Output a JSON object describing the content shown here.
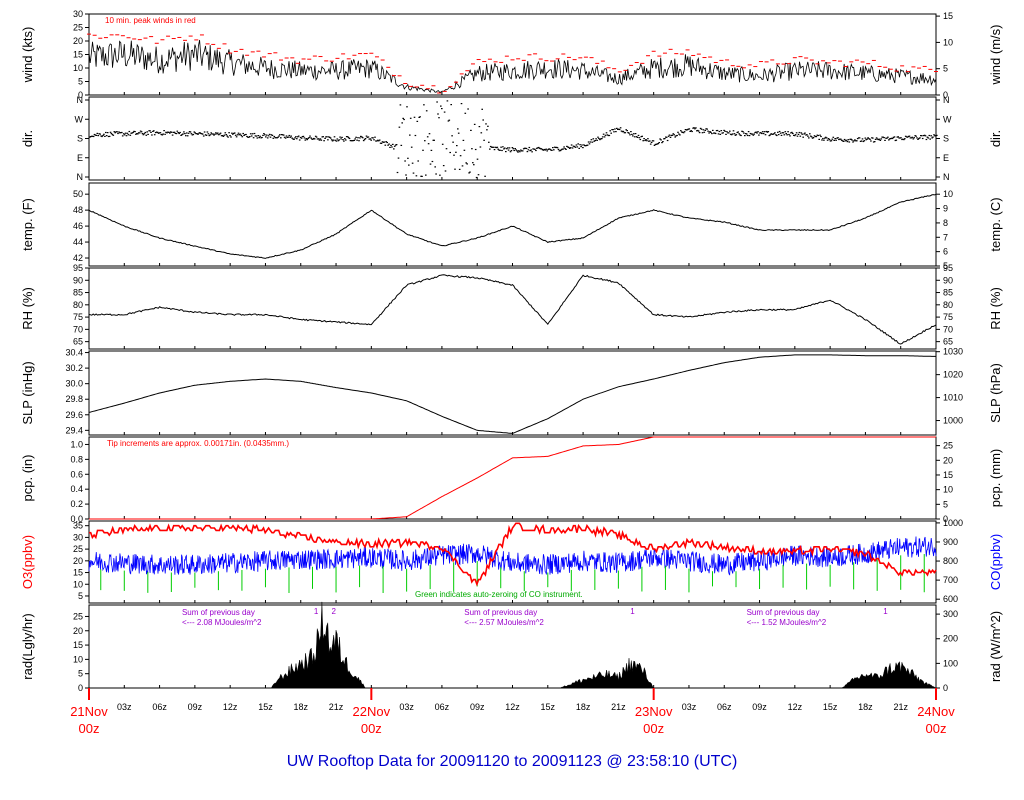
{
  "title": "UW Rooftop Data for 20091120  to  20091123 @ 23:58:10  (UTC)",
  "colors": {
    "frame": "#000000",
    "peak": "#ff0000",
    "ozone": "#ff0000",
    "co": "#0000ff",
    "co_zero": "#00cc00",
    "note_purple": "#9900cc",
    "title": "#0000cc",
    "date_label": "#ff0000"
  },
  "x_axis": {
    "range_hours": [
      0,
      72
    ],
    "tick_hours": [
      3,
      6,
      9,
      12,
      15,
      18,
      21,
      27,
      30,
      33,
      36,
      39,
      42,
      45,
      51,
      54,
      57,
      60,
      63,
      66,
      69
    ],
    "tick_labels": [
      "03z",
      "06z",
      "09z",
      "12z",
      "15z",
      "18z",
      "21z",
      "03z",
      "06z",
      "09z",
      "12z",
      "15z",
      "18z",
      "21z",
      "03z",
      "06z",
      "09z",
      "12z",
      "15z",
      "18z",
      "21z"
    ],
    "date_marks": [
      {
        "hour": 0,
        "line1": "21Nov",
        "line2": "00z"
      },
      {
        "hour": 24,
        "line1": "22Nov",
        "line2": "00z"
      },
      {
        "hour": 48,
        "line1": "23Nov",
        "line2": "00z"
      },
      {
        "hour": 72,
        "line1": "24Nov",
        "line2": "00z"
      }
    ]
  },
  "chart_data": [
    {
      "type": "line",
      "ylabel": "wind (kts)",
      "ylabel2": "wind (m/s)",
      "annotation": "10 min. peak winds in red",
      "ylim": [
        0,
        30
      ],
      "yticks": [
        0,
        5,
        10,
        15,
        20,
        25,
        30
      ],
      "ylim2": [
        0,
        15.4
      ],
      "yticks2": [
        0,
        5,
        10,
        15
      ],
      "series": [
        {
          "values_x_hours": [
            0,
            3,
            6,
            9,
            12,
            15,
            18,
            21,
            24,
            27,
            30,
            33,
            36,
            39,
            42,
            45,
            48,
            51,
            54,
            57,
            60,
            63,
            66,
            69,
            72
          ],
          "values": [
            14,
            15,
            13,
            15,
            12,
            10,
            9,
            9,
            10,
            3,
            1,
            8,
            9,
            10,
            9,
            6,
            10,
            11,
            8,
            7,
            9,
            9,
            8,
            7,
            6
          ]
        },
        {
          "values_x_hours": [
            0,
            3,
            6,
            9,
            12,
            15,
            18,
            21,
            24,
            27,
            30,
            33,
            36,
            39,
            42,
            45,
            48,
            51,
            54,
            57,
            60,
            63,
            66,
            69,
            72
          ],
          "values": [
            22,
            22,
            20,
            22,
            17,
            15,
            13,
            14,
            15,
            5,
            2,
            12,
            14,
            14,
            14,
            9,
            15,
            16,
            12,
            11,
            13,
            12,
            12,
            10,
            9
          ]
        }
      ]
    },
    {
      "type": "scatter",
      "ylabel": "dir.",
      "ylabel2": "dir.",
      "ytick_labels": [
        "N",
        "E",
        "S",
        "W",
        "N"
      ],
      "series": [
        {
          "values_x_hours": [
            0,
            3,
            6,
            9,
            12,
            15,
            18,
            21,
            24,
            27,
            30,
            33,
            36,
            39,
            42,
            45,
            48,
            51,
            54,
            57,
            60,
            63,
            66,
            69,
            72
          ],
          "values": [
            200,
            205,
            210,
            205,
            200,
            195,
            185,
            180,
            185,
            120,
            60,
            140,
            130,
            130,
            150,
            230,
            160,
            225,
            210,
            205,
            205,
            180,
            175,
            185,
            190
          ]
        }
      ]
    },
    {
      "type": "line",
      "ylabel": "temp. (F)",
      "ylabel2": "temp. (C)",
      "ylim": [
        41,
        51.4
      ],
      "yticks": [
        42,
        44,
        46,
        48,
        50
      ],
      "yticks2": [
        5,
        6,
        7,
        8,
        9,
        10
      ],
      "series": [
        {
          "values_x_hours": [
            0,
            3,
            6,
            9,
            12,
            15,
            18,
            21,
            24,
            27,
            30,
            33,
            36,
            39,
            42,
            45,
            48,
            51,
            54,
            57,
            60,
            63,
            66,
            69,
            72
          ],
          "values": [
            48,
            46,
            44.5,
            43.5,
            42.5,
            42,
            43,
            45,
            48,
            45,
            43.5,
            44.5,
            46,
            44,
            44.5,
            47,
            48,
            47,
            46.5,
            45.5,
            45.5,
            45.5,
            47,
            49,
            50
          ]
        }
      ]
    },
    {
      "type": "line",
      "ylabel": "RH (%)",
      "ylabel2": "RH (%)",
      "ylim": [
        62,
        95
      ],
      "yticks": [
        65,
        70,
        75,
        80,
        85,
        90,
        95
      ],
      "yticks2": [
        65,
        70,
        75,
        80,
        85,
        90,
        95
      ],
      "series": [
        {
          "values_x_hours": [
            0,
            3,
            6,
            9,
            12,
            15,
            18,
            21,
            24,
            27,
            30,
            33,
            36,
            39,
            42,
            45,
            48,
            51,
            54,
            57,
            60,
            63,
            66,
            69,
            72
          ],
          "values": [
            76,
            76,
            79,
            77,
            76,
            76,
            74,
            73,
            72,
            88,
            92,
            91,
            88,
            72,
            92,
            89,
            76,
            75,
            77,
            78,
            78,
            82,
            74,
            64,
            72
          ]
        }
      ]
    },
    {
      "type": "line",
      "ylabel": "SLP (inHg)",
      "ylabel2": "SLP (hPa)",
      "ylim": [
        29.34,
        30.42
      ],
      "yticks": [
        29.4,
        29.6,
        29.8,
        30.0,
        30.2,
        30.4
      ],
      "yticks2": [
        1000,
        1010,
        1020,
        1030
      ],
      "series": [
        {
          "values_x_hours": [
            0,
            3,
            6,
            9,
            12,
            15,
            18,
            21,
            24,
            27,
            30,
            33,
            36,
            39,
            42,
            45,
            48,
            51,
            54,
            57,
            60,
            63,
            66,
            69,
            72
          ],
          "values": [
            29.63,
            29.75,
            29.88,
            29.98,
            30.03,
            30.06,
            30.03,
            29.95,
            29.88,
            29.78,
            29.58,
            29.4,
            29.36,
            29.55,
            29.8,
            29.96,
            30.06,
            30.17,
            30.27,
            30.34,
            30.37,
            30.37,
            30.36,
            30.36,
            30.35
          ]
        }
      ]
    },
    {
      "type": "line",
      "ylabel": "pcp. (in)",
      "ylabel2": "pcp. (mm)",
      "annotation": "Tip increments are approx. 0.00171in. (0.0435mm.)",
      "ylim": [
        0,
        1.1
      ],
      "yticks": [
        0.0,
        0.2,
        0.4,
        0.6,
        0.8,
        1.0
      ],
      "yticks2": [
        0,
        5,
        10,
        15,
        20,
        25
      ],
      "series": [
        {
          "values_x_hours": [
            0,
            3,
            6,
            9,
            12,
            15,
            18,
            21,
            24,
            27,
            30,
            33,
            36,
            39,
            42,
            45,
            48,
            51,
            54,
            57,
            60,
            63,
            66,
            69,
            72
          ],
          "values": [
            0,
            0,
            0,
            0,
            0,
            0,
            0,
            0,
            0,
            0.03,
            0.3,
            0.55,
            0.82,
            0.84,
            0.98,
            1.0,
            1.1,
            1.1,
            1.1,
            1.1,
            1.1,
            1.1,
            1.1,
            1.1,
            1.1
          ]
        }
      ]
    },
    {
      "type": "line",
      "ylabel": "O3(ppbv)",
      "ylabel2": "CO(ppbv)",
      "annotation": "Green indicates auto-zeroing of CO instrument.",
      "ylim": [
        2,
        37
      ],
      "yticks": [
        5,
        10,
        15,
        20,
        25,
        30,
        35
      ],
      "ylim2": [
        580,
        1010
      ],
      "yticks2": [
        600,
        700,
        800,
        900,
        1000
      ],
      "series": [
        {
          "name": "",
          "values_x_hours": [
            0,
            3,
            6,
            9,
            12,
            15,
            18,
            21,
            24,
            27,
            30,
            33,
            36,
            39,
            42,
            45,
            48,
            51,
            54,
            57,
            60,
            63,
            66,
            69,
            72
          ],
          "values": [
            31,
            33,
            34,
            34,
            34,
            33,
            30,
            28,
            27,
            28,
            26,
            10,
            35,
            33,
            34,
            31,
            25,
            28,
            26,
            24,
            24,
            25,
            23,
            15,
            15
          ]
        },
        {
          "name": "",
          "values_x_hours": [
            0,
            3,
            6,
            9,
            12,
            15,
            18,
            21,
            24,
            27,
            30,
            33,
            36,
            39,
            42,
            45,
            48,
            51,
            54,
            57,
            60,
            63,
            66,
            69,
            72
          ],
          "values": [
            800,
            790,
            780,
            780,
            790,
            800,
            810,
            810,
            820,
            800,
            830,
            840,
            790,
            780,
            800,
            790,
            820,
            800,
            780,
            800,
            830,
            820,
            840,
            870,
            880
          ]
        }
      ]
    },
    {
      "type": "area",
      "ylabel": "rad(Lgly/hr)",
      "ylabel2": "rad (W/m^2)",
      "ylim": [
        0,
        29
      ],
      "yticks": [
        0,
        5,
        10,
        15,
        20,
        25
      ],
      "ylim2": [
        0,
        337
      ],
      "yticks2": [
        0,
        100,
        200,
        300
      ],
      "notes": [
        {
          "hour": 4.5,
          "line1": "Sum of previous day",
          "line2": "<--- 2.08 MJoules/m^2"
        },
        {
          "hour": 28.5,
          "line1": "Sum of previous day",
          "line2": "<--- 2.57 MJoules/m^2"
        },
        {
          "hour": 52.5,
          "line1": "Sum of previous day",
          "line2": "<--- 1.52 MJoules/m^2"
        }
      ],
      "markers": [
        {
          "hour": 19.3,
          "label": "1"
        },
        {
          "hour": 20.8,
          "label": "2"
        },
        {
          "hour": 46.2,
          "label": "1"
        },
        {
          "hour": 67.7,
          "label": "1"
        }
      ],
      "series": [
        {
          "values_x_hours": [
            15.5,
            16,
            17,
            18,
            19,
            19.5,
            20,
            20.5,
            21,
            21.5,
            22,
            23,
            23.5,
            40,
            41,
            42,
            43,
            44,
            45,
            46,
            47,
            48,
            64,
            65,
            66,
            67,
            68,
            69,
            70,
            71,
            72
          ],
          "values": [
            0,
            3,
            6,
            9,
            11,
            18,
            27,
            15,
            17,
            12,
            8,
            3,
            0,
            0,
            1.5,
            3,
            4,
            5,
            4,
            9,
            7,
            0,
            0,
            3,
            5,
            4,
            7,
            8,
            5,
            2,
            0
          ]
        }
      ]
    }
  ]
}
